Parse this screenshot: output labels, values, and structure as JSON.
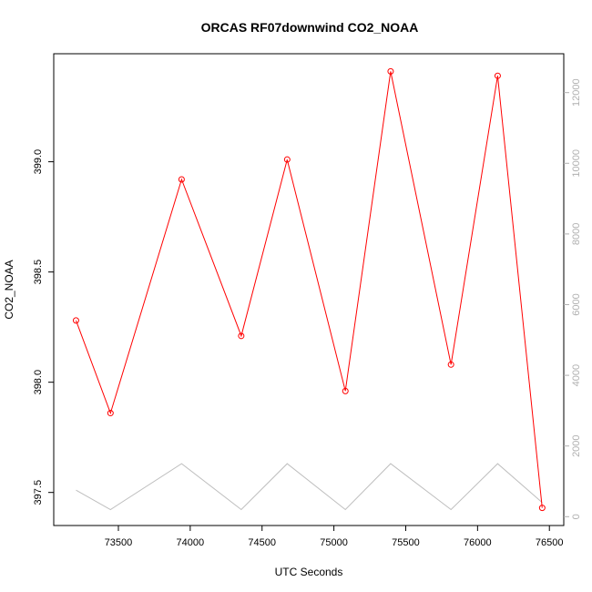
{
  "chart_data": {
    "type": "line",
    "title": "ORCAS RF07downwind CO2_NOAA",
    "xlabel": "UTC Seconds",
    "ylabel": "CO2_NOAA",
    "xlim": [
      73050,
      76600
    ],
    "ylim": [
      397.35,
      399.49
    ],
    "y2lim": [
      -250,
      13100
    ],
    "x_ticks": [
      73500,
      74000,
      74500,
      75000,
      75500,
      76000,
      76500
    ],
    "x_tick_labels": [
      "73500",
      "74000",
      "74500",
      "75000",
      "75500",
      "76000",
      "76500"
    ],
    "y_ticks": [
      397.5,
      398.0,
      398.5,
      399.0
    ],
    "y_tick_labels": [
      "397.5",
      "398.0",
      "398.5",
      "399.0"
    ],
    "y2_ticks": [
      0,
      2000,
      4000,
      6000,
      8000,
      10000,
      12000
    ],
    "y2_tick_labels": [
      "0",
      "2000",
      "4000",
      "6000",
      "8000",
      "10000",
      "12000"
    ],
    "grid": false,
    "series": [
      {
        "axis": "left",
        "color": "#ff0000",
        "marker": "open-circle",
        "x": [
          73205,
          73445,
          73940,
          74355,
          74675,
          75080,
          75395,
          75815,
          76140,
          76450
        ],
        "y": [
          398.28,
          397.86,
          398.92,
          398.21,
          399.01,
          397.96,
          399.41,
          398.08,
          399.39,
          397.43
        ]
      },
      {
        "axis": "right",
        "color": "#bebebe",
        "marker": "none",
        "x": [
          73205,
          73445,
          73940,
          74355,
          74675,
          75080,
          75395,
          75815,
          76140,
          76450
        ],
        "y": [
          750,
          200,
          1500,
          200,
          1500,
          200,
          1500,
          200,
          1500,
          400
        ]
      }
    ]
  }
}
